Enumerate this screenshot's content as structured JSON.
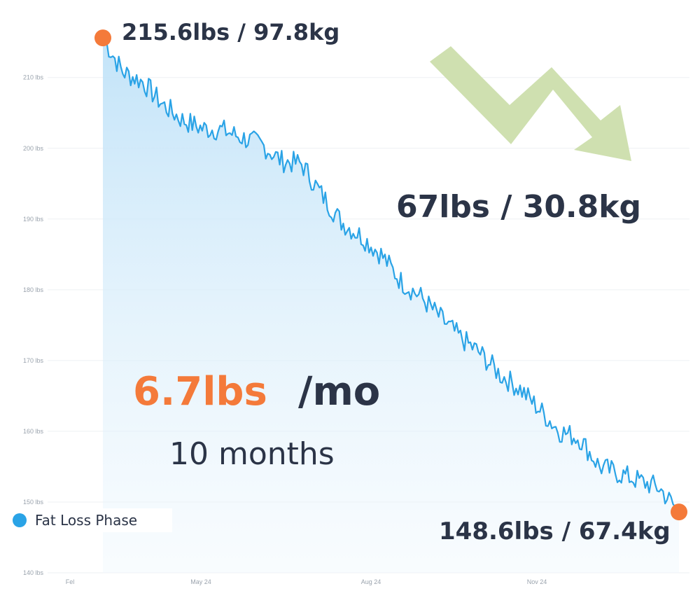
{
  "chart_data": {
    "type": "area",
    "series": [
      {
        "name": "Fat Loss Phase"
      }
    ],
    "y_ticks": [
      "140 lbs",
      "150 lbs",
      "160 lbs",
      "170 lbs",
      "180 lbs",
      "190 lbs",
      "200 lbs",
      "210 lbs"
    ],
    "x_ticks": [
      "Fel",
      "May 24",
      "Aug 24",
      "Nov 24"
    ],
    "ylim": [
      140,
      217
    ],
    "x": [
      "Mar 24",
      "Mar 24",
      "Apr 24",
      "Apr 24",
      "Apr 24",
      "May 24",
      "May 24",
      "May 24",
      "Jun 24",
      "Jun 24",
      "Jun 24",
      "Jul 24",
      "Jul 24",
      "Jul 24",
      "Aug 24",
      "Aug 24",
      "Aug 24",
      "Sep 24",
      "Sep 24",
      "Sep 24",
      "Oct 24",
      "Oct 24",
      "Oct 24",
      "Nov 24",
      "Nov 24",
      "Nov 24",
      "Dec 24",
      "Dec 24",
      "Dec 24",
      "Jan 25"
    ],
    "values": [
      215.6,
      210.8,
      209.4,
      206.2,
      204.0,
      202.8,
      202.6,
      201.5,
      200.5,
      198.2,
      197.8,
      193.5,
      189.6,
      187.6,
      185.0,
      181.2,
      179.0,
      176.0,
      173.2,
      171.0,
      168.0,
      166.0,
      163.0,
      160.0,
      159.0,
      155.0,
      154.0,
      153.0,
      152.0,
      148.6
    ],
    "start_label": "215.6lbs / 97.8kg",
    "end_label": "148.6lbs / 67.4kg",
    "total_label": "67lbs / 30.8kg",
    "rate_value": "6.7lbs",
    "rate_unit": "/mo",
    "duration": "10 months",
    "colors": {
      "line": "#2aa3e6",
      "area_top": "#cfe9fa",
      "marker": "#f47a3a",
      "text": "#2b3447",
      "arrow": "#cfe0b0",
      "grid": "#eef0f3"
    }
  }
}
